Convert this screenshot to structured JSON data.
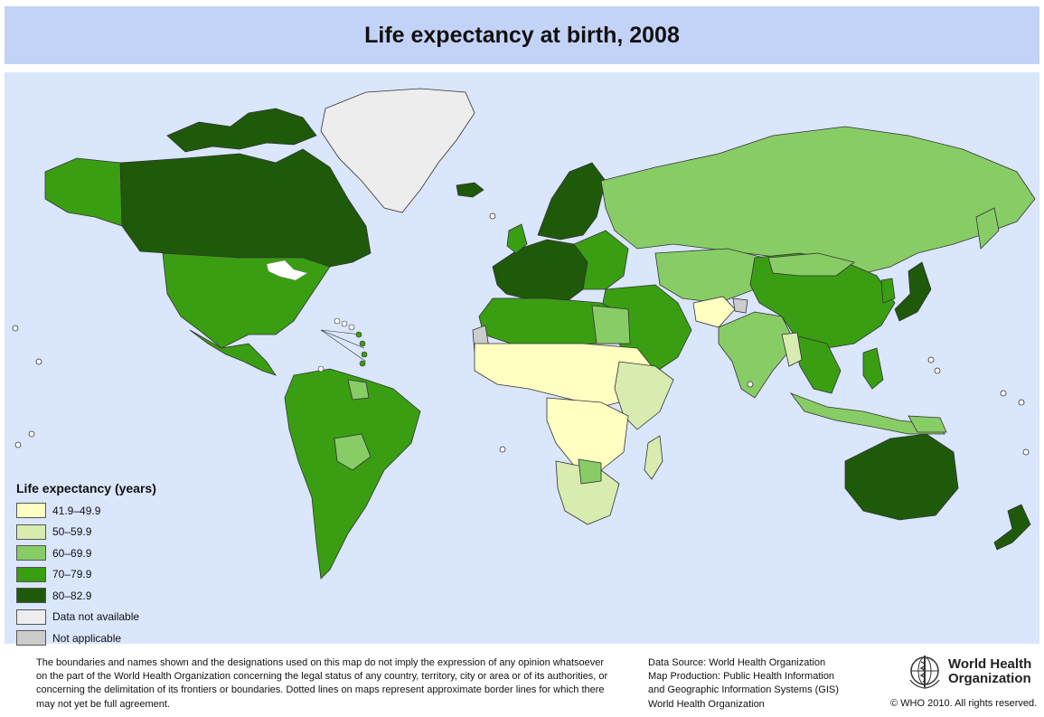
{
  "title": "Life expectancy at birth, 2008",
  "legend": {
    "title": "Life expectancy (years)",
    "items": [
      {
        "label": "41.9–49.9",
        "color": "#ffffc2"
      },
      {
        "label": "50–59.9",
        "color": "#d8ecb0"
      },
      {
        "label": "60–69.9",
        "color": "#88cc66"
      },
      {
        "label": "70–79.9",
        "color": "#3a9e12"
      },
      {
        "label": "80–82.9",
        "color": "#1e5a0a"
      },
      {
        "label": "Data not available",
        "color": "#ededed"
      },
      {
        "label": "Not applicable",
        "color": "#cccccc"
      }
    ]
  },
  "disclaimer": "The boundaries and names shown and the designations used on this map do not imply the expression of any opinion whatsoever on the part of the World Health Organization concerning the legal status of any country, territory, city or area or of its authorities, or concerning the delimitation of its frontiers or boundaries.  Dotted lines on maps represent approximate border lines for which there may not yet be full agreement.",
  "source": {
    "line1": "Data Source: World Health Organization",
    "line2": "Map Production: Public Health Information",
    "line3": "and Geographic Information Systems (GIS)",
    "line4": "World Health Organization"
  },
  "logo": {
    "line1": "World Health",
    "line2": "Organization"
  },
  "copyright": "© WHO 2010. All rights reserved.",
  "colors": {
    "ocean": "#dae6fb",
    "title_bg": "#c3d3f7"
  }
}
